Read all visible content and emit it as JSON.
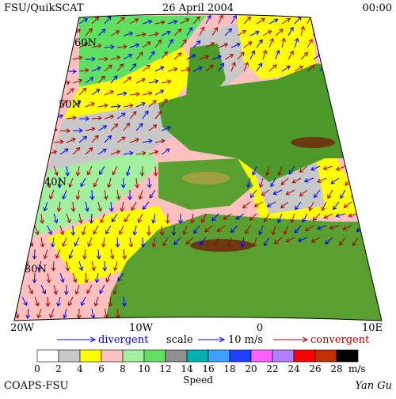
{
  "header": {
    "left": "FSU/QuikSCAT",
    "center": "26 April 2004",
    "right": "00:00"
  },
  "latitude_labels": [
    "60N",
    "50N",
    "40N",
    "30N"
  ],
  "longitude_labels": [
    "20W",
    "10W",
    "0",
    "10E"
  ],
  "legend": {
    "divergent": "divergent",
    "scale": "scale",
    "scale_value": "10 m/s",
    "convergent": "convergent"
  },
  "colorbar": {
    "title": "Speed",
    "unit": "m/s",
    "ticks": [
      0,
      2,
      4,
      6,
      8,
      10,
      12,
      14,
      16,
      18,
      20,
      22,
      24,
      26,
      28
    ],
    "colors": [
      "#ffffff",
      "#c8c8c8",
      "#ffff00",
      "#ffc0c0",
      "#a0f0a0",
      "#60e060",
      "#909090",
      "#00b0b0",
      "#40a0ff",
      "#2040ff",
      "#ff60ff",
      "#b080ff",
      "#ff0000",
      "#c03000",
      "#000000"
    ]
  },
  "footer": {
    "left": "COAPS-FSU",
    "right": "Yan Gu"
  }
}
